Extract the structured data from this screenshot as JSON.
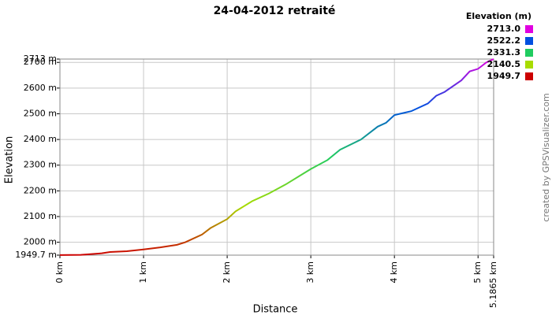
{
  "chart_data": {
    "type": "line",
    "title": "24-04-2012 retraité",
    "xlabel": "Distance",
    "ylabel": "Elevation",
    "watermark": "created by GPSVisualizer.com",
    "x": [
      0,
      0.25,
      0.5,
      0.6,
      0.8,
      1.0,
      1.2,
      1.4,
      1.5,
      1.7,
      1.8,
      2.0,
      2.1,
      2.3,
      2.5,
      2.7,
      2.9,
      3.0,
      3.2,
      3.35,
      3.6,
      3.8,
      3.9,
      4.0,
      4.2,
      4.4,
      4.5,
      4.6,
      4.8,
      4.9,
      5.0,
      5.1,
      5.1865
    ],
    "values": [
      1950,
      1951,
      1957,
      1962,
      1965,
      1972,
      1980,
      1990,
      2000,
      2030,
      2055,
      2090,
      2120,
      2160,
      2190,
      2225,
      2265,
      2285,
      2320,
      2360,
      2400,
      2450,
      2465,
      2495,
      2510,
      2540,
      2570,
      2585,
      2630,
      2665,
      2675,
      2700,
      2713
    ],
    "xlim": [
      0,
      5.1865
    ],
    "ylim": [
      1949.7,
      2713
    ],
    "xticks": [
      {
        "value": 0,
        "label": "0 km"
      },
      {
        "value": 1,
        "label": "1 km"
      },
      {
        "value": 2,
        "label": "2 km"
      },
      {
        "value": 3,
        "label": "3 km"
      },
      {
        "value": 4,
        "label": "4 km"
      },
      {
        "value": 5,
        "label": "5 km"
      },
      {
        "value": 5.1865,
        "label": "5.1865 km"
      }
    ],
    "yticks": [
      {
        "value": 1949.7,
        "label": "1949.7 m"
      },
      {
        "value": 2000,
        "label": "2000 m"
      },
      {
        "value": 2100,
        "label": "2100 m"
      },
      {
        "value": 2200,
        "label": "2200 m"
      },
      {
        "value": 2300,
        "label": "2300 m"
      },
      {
        "value": 2400,
        "label": "2400 m"
      },
      {
        "value": 2500,
        "label": "2500 m"
      },
      {
        "value": 2600,
        "label": "2600 m"
      },
      {
        "value": 2700,
        "label": "2700 m"
      },
      {
        "value": 2713,
        "label": "2713 m"
      }
    ],
    "grid": true,
    "color_scale_title": "Elevation (m)",
    "color_scale": [
      {
        "value": 2713,
        "label": "2713.0",
        "color": "#e000e0"
      },
      {
        "value": 2522.2,
        "label": "2522.2",
        "color": "#0050e0"
      },
      {
        "value": 2331.3,
        "label": "2331.3",
        "color": "#20cc60"
      },
      {
        "value": 2140.5,
        "label": "2140.5",
        "color": "#a8dc00"
      },
      {
        "value": 1949.7,
        "label": "1949.7",
        "color": "#cc0000"
      }
    ]
  }
}
